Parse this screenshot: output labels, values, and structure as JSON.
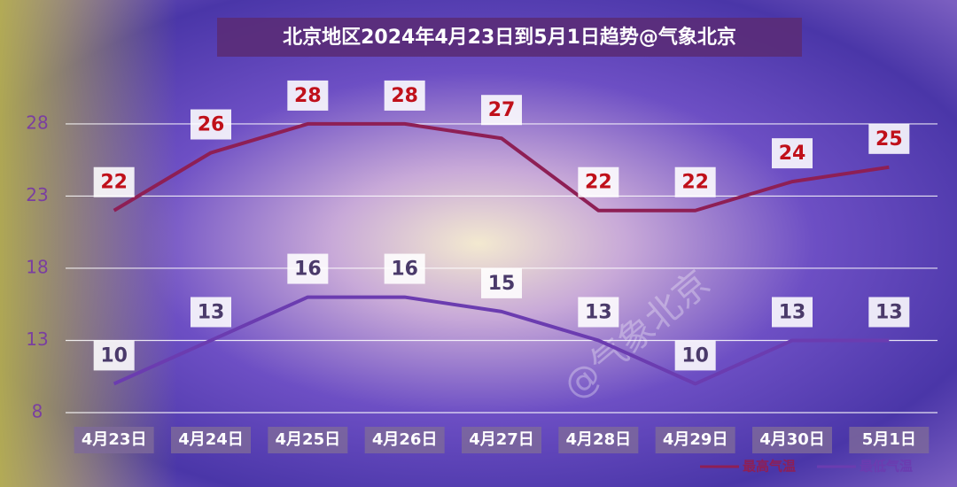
{
  "chart_data": {
    "type": "line",
    "title": "北京地区2024年4月23日到5月1日趋势@气象北京",
    "watermark": "@气象北京",
    "categories": [
      "4月23日",
      "4月24日",
      "4月25日",
      "4月26日",
      "4月27日",
      "4月28日",
      "4月29日",
      "4月30日",
      "5月1日"
    ],
    "series": [
      {
        "name": "最高气温",
        "color": "#8e1f55",
        "values": [
          22,
          26,
          28,
          28,
          27,
          22,
          22,
          24,
          25
        ]
      },
      {
        "name": "最低气温",
        "color": "#6b3cb0",
        "values": [
          10,
          13,
          16,
          16,
          15,
          13,
          10,
          13,
          13
        ]
      }
    ],
    "ylim": [
      8,
      31
    ],
    "yticks": [
      8,
      13,
      18,
      23,
      28
    ],
    "grid": true,
    "legend": "bottom-right"
  }
}
